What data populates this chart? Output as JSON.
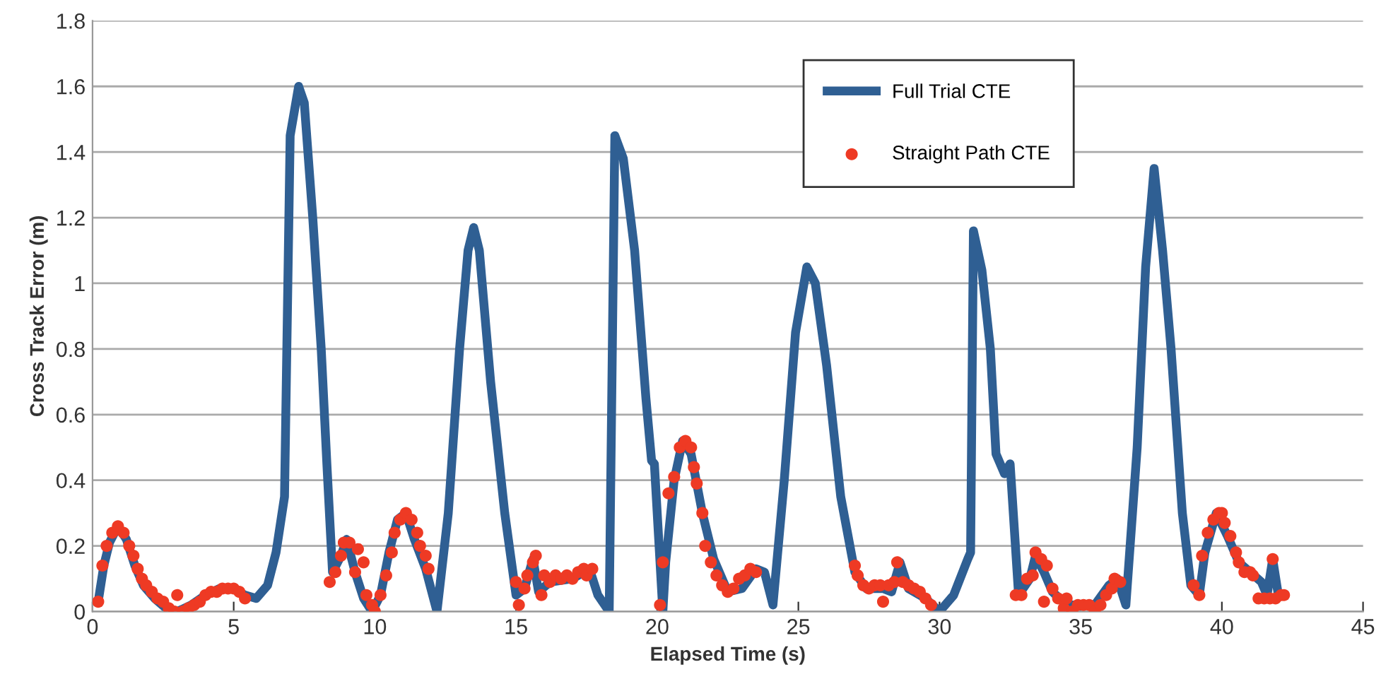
{
  "chart_data": {
    "type": "line",
    "xlabel": "Elapsed Time (s)",
    "ylabel": "Cross Track Error (m)",
    "xlim": [
      0,
      45
    ],
    "ylim": [
      0,
      1.8
    ],
    "xticks": [
      0,
      5,
      10,
      15,
      20,
      25,
      30,
      35,
      40,
      45
    ],
    "yticks": [
      0,
      0.2,
      0.4,
      0.6,
      0.8,
      1,
      1.2,
      1.4,
      1.6,
      1.8
    ],
    "grid": "y",
    "legend": "top right",
    "series": [
      {
        "name": "Full Trial CTE",
        "color": "#2f5f93",
        "marker": "none",
        "line_style": "solid",
        "x": [
          0.2,
          0.4,
          0.6,
          0.9,
          1.2,
          1.5,
          1.8,
          2.2,
          2.6,
          3.0,
          3.5,
          4.0,
          4.5,
          5.0,
          5.4,
          5.8,
          6.2,
          6.5,
          6.8,
          6.9,
          7.0,
          7.3,
          7.5,
          7.8,
          8.1,
          8.3,
          8.5,
          8.8,
          9.0,
          9.3,
          9.6,
          9.9,
          10.2,
          10.5,
          10.8,
          11.1,
          11.4,
          11.8,
          12.2,
          12.6,
          13.0,
          13.3,
          13.5,
          13.7,
          14.1,
          14.6,
          15.0,
          15.3,
          15.6,
          15.8,
          16.2,
          17.0,
          17.6,
          17.9,
          18.3,
          18.5,
          18.8,
          19.2,
          19.6,
          19.8,
          19.9,
          20.2,
          20.3,
          20.6,
          20.9,
          21.2,
          21.6,
          22.0,
          22.5,
          23.0,
          23.5,
          23.8,
          24.1,
          24.5,
          24.9,
          25.3,
          25.6,
          26.0,
          26.5,
          27.0,
          27.4,
          28.0,
          28.3,
          28.6,
          28.9,
          29.5,
          30.0,
          30.5,
          31.0,
          31.1,
          31.2,
          31.5,
          31.8,
          32.0,
          32.3,
          32.5,
          32.8,
          33.2,
          33.4,
          33.7,
          34.0,
          34.5,
          35.0,
          35.5,
          36.0,
          36.3,
          36.6,
          37.0,
          37.3,
          37.6,
          37.9,
          38.2,
          38.6,
          38.9,
          39.2,
          39.4,
          39.8,
          40.2,
          40.6,
          41.0,
          41.4,
          41.6,
          41.8,
          42.0,
          42.2
        ],
        "values": [
          0.03,
          0.14,
          0.21,
          0.26,
          0.22,
          0.14,
          0.08,
          0.04,
          0.01,
          0.0,
          0.02,
          0.05,
          0.07,
          0.07,
          0.05,
          0.04,
          0.08,
          0.18,
          0.35,
          0.9,
          1.45,
          1.6,
          1.55,
          1.2,
          0.8,
          0.45,
          0.12,
          0.17,
          0.22,
          0.12,
          0.04,
          0.0,
          0.05,
          0.18,
          0.28,
          0.3,
          0.22,
          0.13,
          0.0,
          0.3,
          0.8,
          1.1,
          1.17,
          1.1,
          0.7,
          0.3,
          0.05,
          0.07,
          0.16,
          0.06,
          0.09,
          0.1,
          0.13,
          0.05,
          0.0,
          1.45,
          1.38,
          1.1,
          0.65,
          0.46,
          0.45,
          0.0,
          0.15,
          0.4,
          0.52,
          0.48,
          0.3,
          0.16,
          0.06,
          0.07,
          0.13,
          0.12,
          0.02,
          0.4,
          0.85,
          1.05,
          1.0,
          0.75,
          0.35,
          0.12,
          0.07,
          0.07,
          0.06,
          0.15,
          0.07,
          0.04,
          0.0,
          0.05,
          0.16,
          0.18,
          1.16,
          1.04,
          0.8,
          0.48,
          0.42,
          0.45,
          0.05,
          0.1,
          0.17,
          0.12,
          0.06,
          0.02,
          0.02,
          0.02,
          0.08,
          0.1,
          0.02,
          0.5,
          1.05,
          1.35,
          1.1,
          0.8,
          0.3,
          0.08,
          0.05,
          0.18,
          0.3,
          0.23,
          0.15,
          0.12,
          0.09,
          0.05,
          0.16,
          0.05,
          0.05
        ]
      },
      {
        "name": "Straight Path CTE",
        "type": "scatter",
        "color": "#ee3a24",
        "marker": "circle",
        "x": [
          0.2,
          0.35,
          0.5,
          0.7,
          0.9,
          1.1,
          1.3,
          1.45,
          1.6,
          1.75,
          1.9,
          2.1,
          2.3,
          2.5,
          2.7,
          2.9,
          3.0,
          3.2,
          3.4,
          3.6,
          3.8,
          4.0,
          4.2,
          4.4,
          4.6,
          4.8,
          5.0,
          5.2,
          5.4,
          8.4,
          8.6,
          8.8,
          8.9,
          9.1,
          9.3,
          9.4,
          9.6,
          9.7,
          9.9,
          10.0,
          10.2,
          10.4,
          10.6,
          10.7,
          10.9,
          11.1,
          11.3,
          11.5,
          11.6,
          11.8,
          11.9,
          15.0,
          15.1,
          15.3,
          15.4,
          15.6,
          15.7,
          15.9,
          16.0,
          16.2,
          16.4,
          16.6,
          16.8,
          17.0,
          17.2,
          17.4,
          17.5,
          17.7,
          20.1,
          20.2,
          20.4,
          20.6,
          20.8,
          21.0,
          21.2,
          21.3,
          21.4,
          21.6,
          21.7,
          21.9,
          22.1,
          22.3,
          22.5,
          22.7,
          22.9,
          23.1,
          23.3,
          23.5,
          27.0,
          27.1,
          27.3,
          27.5,
          27.7,
          27.9,
          28.0,
          28.2,
          28.4,
          28.5,
          28.7,
          28.9,
          29.1,
          29.3,
          29.5,
          29.7,
          32.7,
          32.9,
          33.1,
          33.3,
          33.4,
          33.6,
          33.7,
          33.8,
          34.0,
          34.2,
          34.4,
          34.5,
          34.7,
          34.9,
          35.1,
          35.3,
          35.5,
          35.7,
          35.9,
          36.1,
          36.2,
          36.4,
          39.0,
          39.2,
          39.3,
          39.5,
          39.7,
          39.9,
          40.0,
          40.1,
          40.3,
          40.5,
          40.6,
          40.8,
          41.0,
          41.1,
          41.3,
          41.5,
          41.7,
          41.8,
          41.9,
          42.1,
          42.2
        ],
        "values": [
          0.03,
          0.14,
          0.2,
          0.24,
          0.26,
          0.24,
          0.2,
          0.17,
          0.13,
          0.1,
          0.08,
          0.06,
          0.04,
          0.03,
          0.01,
          0.0,
          0.05,
          0.0,
          0.01,
          0.02,
          0.03,
          0.05,
          0.06,
          0.06,
          0.07,
          0.07,
          0.07,
          0.06,
          0.04,
          0.09,
          0.12,
          0.17,
          0.21,
          0.21,
          0.12,
          0.19,
          0.15,
          0.05,
          0.02,
          0.0,
          0.05,
          0.11,
          0.18,
          0.24,
          0.28,
          0.3,
          0.28,
          0.24,
          0.2,
          0.17,
          0.13,
          0.09,
          0.02,
          0.07,
          0.11,
          0.15,
          0.17,
          0.05,
          0.11,
          0.09,
          0.11,
          0.1,
          0.11,
          0.1,
          0.12,
          0.13,
          0.11,
          0.13,
          0.02,
          0.15,
          0.36,
          0.41,
          0.5,
          0.52,
          0.5,
          0.44,
          0.39,
          0.3,
          0.2,
          0.15,
          0.11,
          0.08,
          0.06,
          0.07,
          0.1,
          0.11,
          0.13,
          0.12,
          0.14,
          0.11,
          0.08,
          0.07,
          0.08,
          0.08,
          0.03,
          0.08,
          0.09,
          0.15,
          0.09,
          0.08,
          0.07,
          0.06,
          0.04,
          0.02,
          0.05,
          0.05,
          0.1,
          0.11,
          0.18,
          0.16,
          0.03,
          0.14,
          0.07,
          0.04,
          0.01,
          0.04,
          0.0,
          0.02,
          0.02,
          0.02,
          0.0,
          0.02,
          0.05,
          0.07,
          0.1,
          0.09,
          0.08,
          0.05,
          0.17,
          0.24,
          0.28,
          0.3,
          0.3,
          0.27,
          0.23,
          0.18,
          0.15,
          0.12,
          0.12,
          0.11,
          0.04,
          0.04,
          0.04,
          0.16,
          0.04,
          0.05,
          0.05
        ]
      }
    ]
  }
}
